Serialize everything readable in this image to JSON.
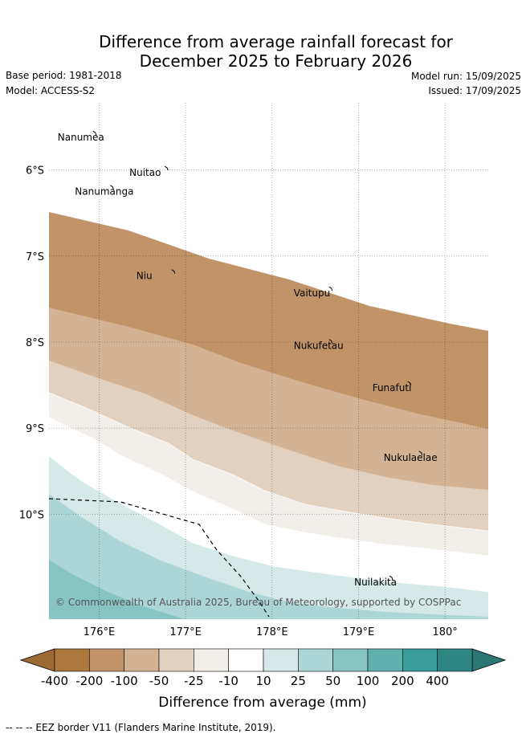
{
  "header": {
    "title_line1": "Difference from average rainfall forecast for",
    "title_line2": "December 2025 to February 2026",
    "base_period": "Base period: 1981-2018",
    "model": "Model: ACCESS-S2",
    "model_run": "Model run: 15/09/2025",
    "issued": "Issued: 17/09/2025"
  },
  "map": {
    "lon_range": [
      175.42,
      180.5
    ],
    "lat_range": [
      -11.22,
      -5.22
    ],
    "lon_ticks": [
      {
        "v": 176,
        "label": "176°E"
      },
      {
        "v": 177,
        "label": "177°E"
      },
      {
        "v": 178,
        "label": "178°E"
      },
      {
        "v": 179,
        "label": "179°E"
      },
      {
        "v": 180,
        "label": "180°"
      }
    ],
    "lat_ticks": [
      {
        "v": -6,
        "label": "6°S"
      },
      {
        "v": -7,
        "label": "7°S"
      },
      {
        "v": -8,
        "label": "8°S"
      },
      {
        "v": -9,
        "label": "9°S"
      },
      {
        "v": -10,
        "label": "10°S"
      }
    ],
    "places": [
      {
        "name": "Nanumea",
        "lon": 175.52,
        "lat": -5.66
      },
      {
        "name": "Nuitao",
        "lon": 176.35,
        "lat": -6.07
      },
      {
        "name": "Nanumanga",
        "lon": 175.72,
        "lat": -6.29
      },
      {
        "name": "Niu",
        "lon": 176.43,
        "lat": -7.27
      },
      {
        "name": "Vaitupu",
        "lon": 178.25,
        "lat": -7.47
      },
      {
        "name": "Nukufetau",
        "lon": 178.25,
        "lat": -8.08
      },
      {
        "name": "Funafuti",
        "lon": 179.16,
        "lat": -8.57
      },
      {
        "name": "Nukulaelae",
        "lon": 179.29,
        "lat": -9.38
      },
      {
        "name": "Nuilakita",
        "lon": 178.95,
        "lat": -10.83
      }
    ],
    "copyright": "© Commonwealth of Australia 2025, Bureau of Meteorology, supported by COSPPac"
  },
  "colorbar": {
    "ticks": [
      "-400",
      "-200",
      "-100",
      "-50",
      "-25",
      "-10",
      "10",
      "25",
      "50",
      "100",
      "200",
      "400"
    ],
    "colors": [
      "#ad783d",
      "#c09467",
      "#d3b393",
      "#e3d1c0",
      "#f2eee9",
      "#ffffff",
      "#d4e9e8",
      "#acd6d5",
      "#87c5c3",
      "#5fb0af",
      "#3a9e9c",
      "#2e8584"
    ],
    "ext_low_color": "#9c6a33",
    "ext_high_color": "#2b7776",
    "label": "Difference from average (mm)"
  },
  "footer": {
    "eez_note": "--  --  -- EEZ border V11 (Flanders Marine Institute, 2019)."
  }
}
